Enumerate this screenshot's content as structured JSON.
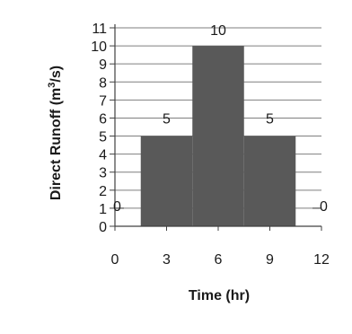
{
  "chart_data": {
    "type": "bar",
    "xlabel": "Time (hr)",
    "ylabel_main": "Direct Runoff  (m",
    "ylabel_sup": "3",
    "ylabel_end": "/s)",
    "xlim": [
      0,
      12
    ],
    "ylim": [
      0,
      11
    ],
    "xticks": [
      0,
      3,
      6,
      9,
      12
    ],
    "yticks": [
      0,
      1,
      2,
      3,
      4,
      5,
      6,
      7,
      8,
      9,
      10,
      11
    ],
    "grid": true,
    "segments": [
      {
        "x0": 0,
        "x1": 1.5,
        "y": 0,
        "label": "0"
      },
      {
        "x0": 1.5,
        "x1": 4.5,
        "y": 5,
        "label": "5"
      },
      {
        "x0": 4.5,
        "x1": 7.5,
        "y": 10,
        "label": "10"
      },
      {
        "x0": 7.5,
        "x1": 10.5,
        "y": 5,
        "label": "5"
      },
      {
        "x0": 10.5,
        "x1": 12,
        "y": 0,
        "label": "0"
      }
    ],
    "colors": {
      "fill": "#595959",
      "grid": "#7f7f7f",
      "axis": "#404040",
      "text": "#1a1a1a"
    }
  }
}
